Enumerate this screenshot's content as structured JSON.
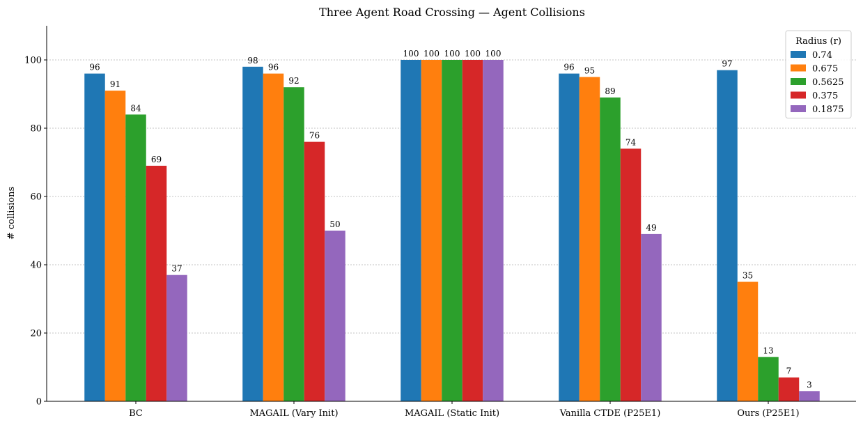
{
  "chart_data": {
    "type": "bar",
    "title": "Three Agent Road Crossing — Agent Collisions",
    "xlabel": "",
    "ylabel": "# collisions",
    "ylim": [
      0,
      110
    ],
    "yticks": [
      0,
      20,
      40,
      60,
      80,
      100
    ],
    "grid": "y-dotted",
    "legend": {
      "title": "Radius (r)",
      "placement": "top-right"
    },
    "categories": [
      "BC",
      "MAGAIL (Vary Init)",
      "MAGAIL (Static Init)",
      "Vanilla CTDE (P25E1)",
      "Ours (P25E1)"
    ],
    "series": [
      {
        "name": "0.74",
        "color": "#1f77b4",
        "values": [
          96,
          98,
          100,
          96,
          97
        ]
      },
      {
        "name": "0.675",
        "color": "#ff7f0e",
        "values": [
          91,
          96,
          100,
          95,
          35
        ]
      },
      {
        "name": "0.5625",
        "color": "#2ca02c",
        "values": [
          84,
          92,
          100,
          89,
          13
        ]
      },
      {
        "name": "0.375",
        "color": "#d62728",
        "values": [
          69,
          76,
          100,
          74,
          7
        ]
      },
      {
        "name": "0.1875",
        "color": "#9467bd",
        "values": [
          37,
          50,
          100,
          49,
          3
        ]
      }
    ]
  }
}
